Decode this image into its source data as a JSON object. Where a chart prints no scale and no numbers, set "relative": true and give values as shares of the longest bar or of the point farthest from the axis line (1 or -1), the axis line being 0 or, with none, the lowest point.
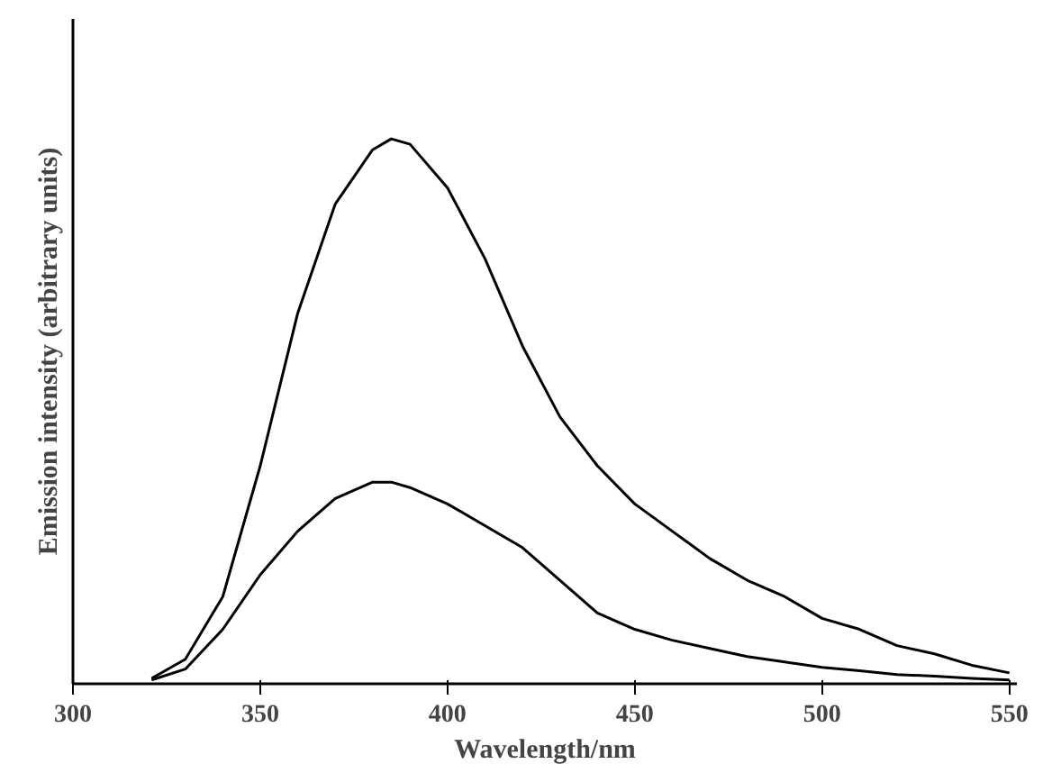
{
  "chart_data": {
    "type": "line",
    "relative": true,
    "xlabel": "Wavelength/nm",
    "ylabel": "Emission intensity (arbitrary units)",
    "xlim": [
      300,
      552
    ],
    "xticks": [
      300,
      350,
      400,
      450,
      500,
      550
    ],
    "grid": false,
    "x": [
      321,
      330,
      340,
      350,
      360,
      370,
      380,
      385,
      390,
      400,
      410,
      420,
      430,
      440,
      450,
      460,
      470,
      480,
      490,
      500,
      510,
      520,
      530,
      540,
      550
    ],
    "series": [
      {
        "color": "#000000",
        "values": [
          0.01,
          0.045,
          0.16,
          0.4,
          0.68,
          0.88,
          0.98,
          1.0,
          0.99,
          0.91,
          0.78,
          0.62,
          0.49,
          0.4,
          0.33,
          0.28,
          0.23,
          0.19,
          0.16,
          0.12,
          0.1,
          0.07,
          0.055,
          0.034,
          0.02
        ]
      },
      {
        "color": "#000000",
        "values": [
          0.007,
          0.027,
          0.1,
          0.2,
          0.28,
          0.34,
          0.37,
          0.37,
          0.36,
          0.33,
          0.29,
          0.25,
          0.19,
          0.13,
          0.1,
          0.08,
          0.065,
          0.05,
          0.04,
          0.03,
          0.024,
          0.017,
          0.014,
          0.01,
          0.007
        ]
      }
    ]
  }
}
